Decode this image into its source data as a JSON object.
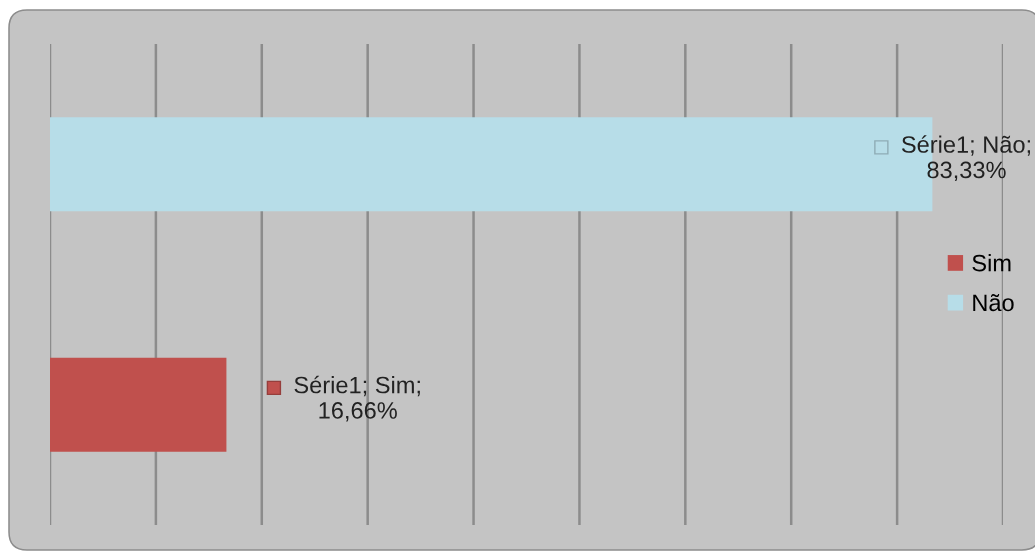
{
  "chart_data": {
    "type": "bar",
    "orientation": "horizontal",
    "stacked": true,
    "categories": [
      null,
      null
    ],
    "series": [
      {
        "name": "Sim",
        "color": "#c0504d",
        "values": [
          null,
          16.66
        ],
        "value_labels": [
          null,
          "Série1; Sim;\n16,66%"
        ]
      },
      {
        "name": "Não",
        "color": "#b7dde8",
        "values": [
          83.33,
          null
        ],
        "value_labels": [
          "Série1; Não;\n83,33%",
          null
        ]
      }
    ],
    "xlim": [
      0,
      90
    ],
    "xticks": [
      {
        "value": 0,
        "label": null
      },
      {
        "value": 10,
        "label": null
      },
      {
        "value": 20,
        "label": null
      },
      {
        "value": 30,
        "label": null
      },
      {
        "value": 40,
        "label": null
      },
      {
        "value": 50,
        "label": null
      },
      {
        "value": 60,
        "label": null
      },
      {
        "value": 70,
        "label": null
      },
      {
        "value": 80,
        "label": null
      },
      {
        "value": 90,
        "label": null
      }
    ],
    "grid": "x",
    "legend": "right",
    "tick_labels": false
  }
}
